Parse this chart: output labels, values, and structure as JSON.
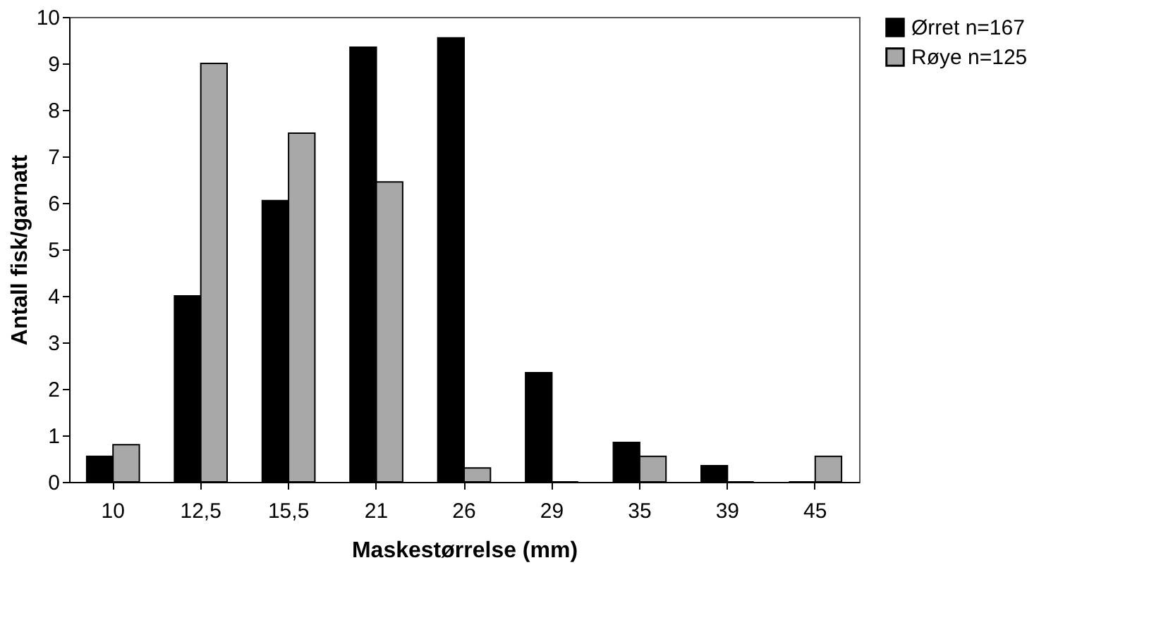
{
  "chart_data": {
    "type": "bar",
    "xlabel": "Maskestørrelse (mm)",
    "ylabel": "Antall fisk/garnatt",
    "categories": [
      "10",
      "12,5",
      "15,5",
      "21",
      "26",
      "29",
      "35",
      "39",
      "45"
    ],
    "series": [
      {
        "name": "Ørret n=167",
        "color": "#000000",
        "values": [
          0.55,
          4.0,
          6.05,
          9.35,
          9.55,
          2.35,
          0.85,
          0.35,
          0
        ]
      },
      {
        "name": "Røye n=125",
        "color": "#a8a8a8",
        "values": [
          0.8,
          9.0,
          7.5,
          6.45,
          0.3,
          0,
          0.55,
          0,
          0.55
        ]
      }
    ],
    "ylim": [
      0,
      10
    ],
    "yticks": [
      0,
      1,
      2,
      3,
      4,
      5,
      6,
      7,
      8,
      9,
      10
    ],
    "grid": false,
    "legend": "right"
  }
}
